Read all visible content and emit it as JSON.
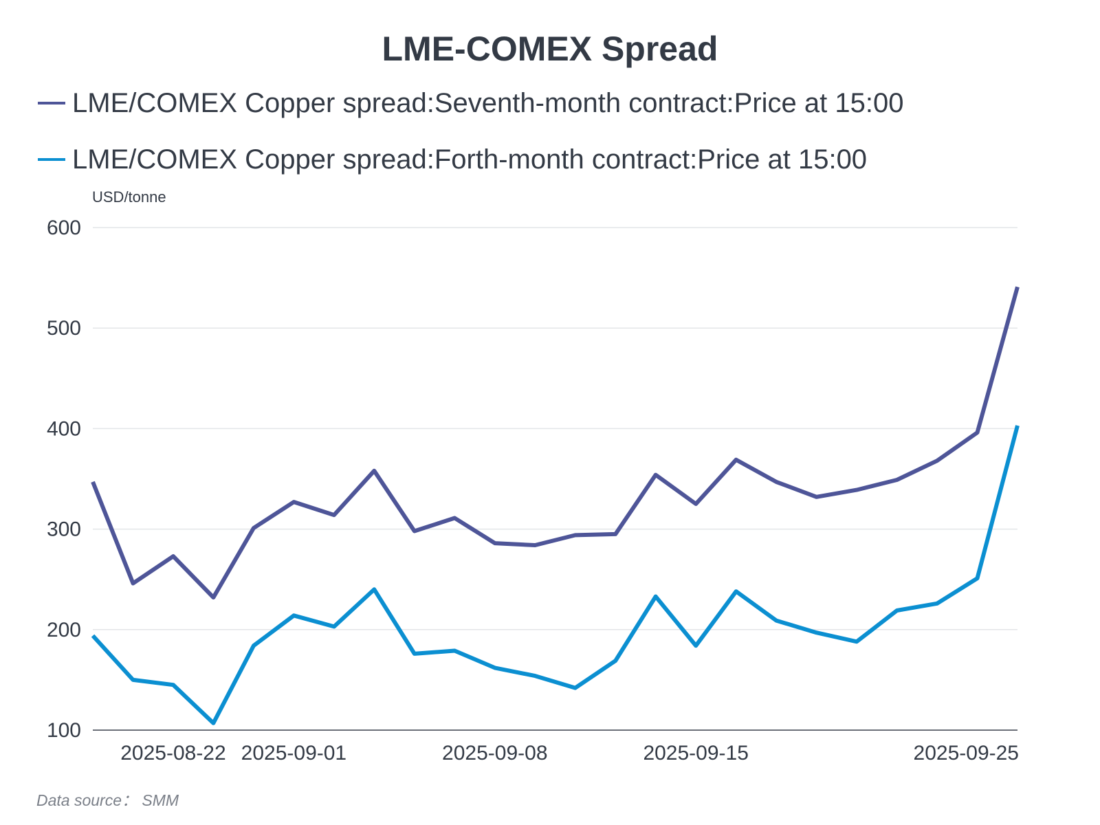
{
  "chart_data": {
    "type": "line",
    "title": "LME-COMEX Spread",
    "ylabel": "USD/tonne",
    "xlabel": "",
    "source": "Data source： SMM",
    "ylim": [
      100,
      600
    ],
    "yticks": [
      100,
      200,
      300,
      400,
      500,
      600
    ],
    "x": [
      "2025-08-20",
      "2025-08-21",
      "2025-08-22",
      "2025-08-25",
      "2025-08-29",
      "2025-09-01",
      "2025-09-02",
      "2025-09-03",
      "2025-09-04",
      "2025-09-05",
      "2025-09-08",
      "2025-09-09",
      "2025-09-10",
      "2025-09-11",
      "2025-09-12",
      "2025-09-15",
      "2025-09-16",
      "2025-09-17",
      "2025-09-18",
      "2025-09-19",
      "2025-09-22",
      "2025-09-23",
      "2025-09-24",
      "2025-09-25"
    ],
    "xticks": [
      {
        "label": "2025-08-22",
        "index": 2
      },
      {
        "label": "2025-09-01",
        "index": 5
      },
      {
        "label": "2025-09-08",
        "index": 10
      },
      {
        "label": "2025-09-15",
        "index": 15
      },
      {
        "label": "2025-09-25",
        "index": 23
      }
    ],
    "grid": true,
    "legend_position": "top-left",
    "series": [
      {
        "name": "LME/COMEX Copper spread:Seventh-month contract:Price at 15:00",
        "color": "#4e5598",
        "values": [
          347,
          246,
          273,
          232,
          301,
          327,
          314,
          358,
          298,
          311,
          286,
          284,
          294,
          295,
          354,
          325,
          369,
          347,
          332,
          339,
          349,
          368,
          396,
          541
        ]
      },
      {
        "name": "LME/COMEX Copper spread:Forth-month contract:Price at 15:00",
        "color": "#0b8fd1",
        "values": [
          194,
          150,
          145,
          107,
          184,
          214,
          203,
          240,
          176,
          179,
          162,
          154,
          142,
          169,
          233,
          184,
          238,
          209,
          197,
          188,
          219,
          226,
          251,
          403
        ]
      }
    ]
  }
}
